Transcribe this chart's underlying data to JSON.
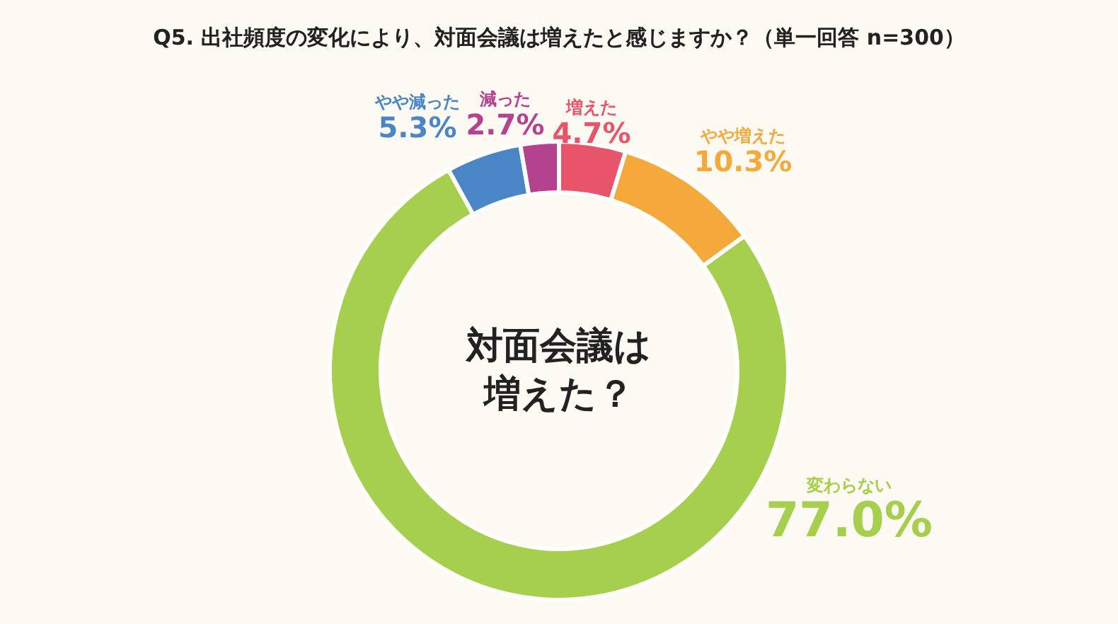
{
  "chart_data": {
    "type": "donut",
    "title": "Q5. 出社頻度の変化により、対面会議は増えたと感じますか？（単一回答 n=300）",
    "categories": [
      "増えた",
      "やや増えた",
      "変わらない",
      "やや減った",
      "減った"
    ],
    "values": [
      4.7,
      10.3,
      77.0,
      5.3,
      2.7
    ],
    "value_labels": [
      "4.7%",
      "10.3%",
      "77.0%",
      "5.3%",
      "2.7%"
    ],
    "colors": [
      "#e8546a",
      "#f5a93a",
      "#a5cf4c",
      "#4a86c5",
      "#b5428e"
    ],
    "annotations": [
      "対面会議は増えた？"
    ],
    "legend": false
  }
}
